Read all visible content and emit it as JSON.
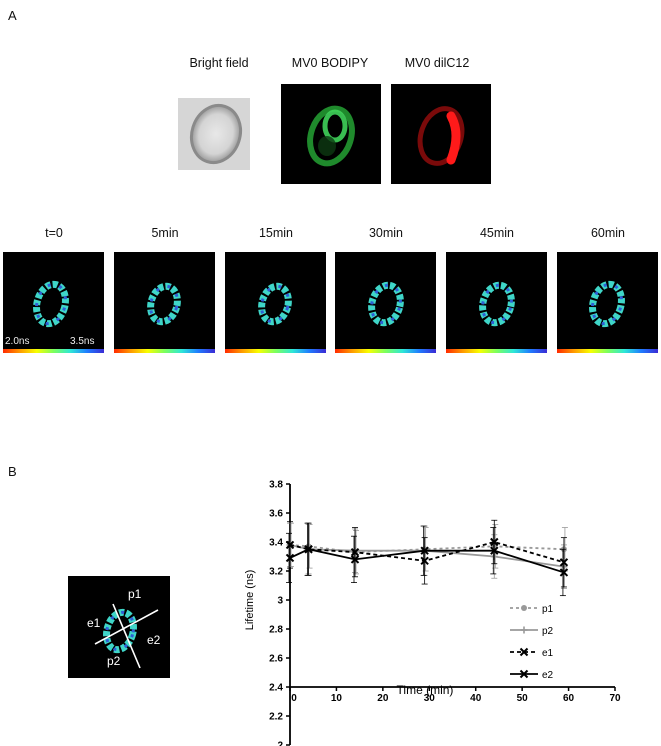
{
  "panel_a": {
    "letter": "A",
    "top_labels": [
      "Bright field",
      "MV0 BODIPY",
      "MV0 dilC12"
    ],
    "time_labels": [
      "t=0",
      "5min",
      "15min",
      "30min",
      "45min",
      "60min"
    ],
    "scale_min": "2.0ns",
    "scale_max": "3.5ns"
  },
  "panel_b": {
    "letter": "B",
    "cell_labels": {
      "p1": "p1",
      "p2": "p2",
      "e1": "e1",
      "e2": "e2"
    }
  },
  "chart_data": {
    "type": "line",
    "xlabel": "Time (min)",
    "ylabel": "Lifetime (ns)",
    "xlim": [
      0,
      70
    ],
    "ylim": [
      2,
      3.8
    ],
    "x_ticks": [
      "0",
      "10",
      "20",
      "30",
      "40",
      "50",
      "60",
      "70"
    ],
    "y_ticks": [
      "2",
      "2.2",
      "2.4",
      "2.6",
      "2.8",
      "3",
      "3.2",
      "3.4",
      "3.6",
      "3.8"
    ],
    "x": [
      0,
      4,
      14,
      29,
      44,
      59
    ],
    "legend_position": "lower-right",
    "series": [
      {
        "name": "p1",
        "values": [
          3.38,
          3.37,
          3.33,
          3.35,
          3.37,
          3.35
        ],
        "err": [
          0.15,
          0.15,
          0.15,
          0.15,
          0.15,
          0.15
        ],
        "color": "#999999",
        "dash": "3,3",
        "marker": "circle"
      },
      {
        "name": "p2",
        "values": [
          3.38,
          3.35,
          3.34,
          3.34,
          3.3,
          3.23
        ],
        "err": [
          0.15,
          0.17,
          0.15,
          0.17,
          0.15,
          0.15
        ],
        "color": "#999999",
        "dash": "",
        "marker": "plus"
      },
      {
        "name": "e1",
        "values": [
          3.38,
          3.35,
          3.33,
          3.27,
          3.4,
          3.26
        ],
        "err": [
          0.16,
          0.18,
          0.17,
          0.16,
          0.15,
          0.17
        ],
        "color": "#000000",
        "dash": "4,3",
        "marker": "x"
      },
      {
        "name": "e2",
        "values": [
          3.29,
          3.35,
          3.28,
          3.34,
          3.34,
          3.19
        ],
        "err": [
          0.17,
          0.18,
          0.16,
          0.17,
          0.16,
          0.16
        ],
        "color": "#000000",
        "dash": "",
        "marker": "x"
      }
    ]
  }
}
